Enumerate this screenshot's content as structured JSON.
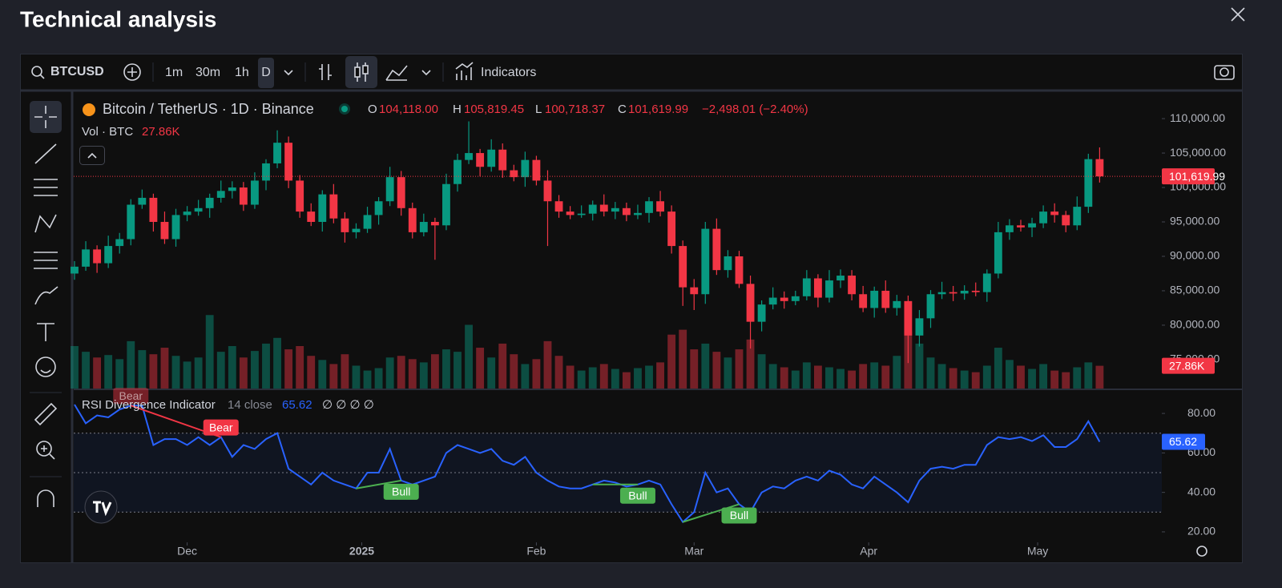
{
  "page": {
    "title": "Technical analysis",
    "toolbar": {
      "symbol": "BTCUSD",
      "intervals": [
        "1m",
        "30m",
        "1h",
        "D"
      ],
      "indicators": "Indicators"
    }
  },
  "chart_data": {
    "type": "candlestick",
    "header": {
      "instrument": "Bitcoin / TetherUS · 1D · Binance",
      "o": "O",
      "h": "H",
      "l": "L",
      "c": "C",
      "volume_title": "Vol · BTC"
    },
    "last_labels": {
      "open": "104,118.00",
      "high": "105,819.45",
      "low": "100,718.37",
      "close": "101,619.99",
      "change": "−2,498.01 (−2.40%)",
      "volume": "27.86K"
    },
    "up_color": "#089981",
    "down_color": "#f23645",
    "xlim": [
      -0.07,
      96.52
    ],
    "xticks": [
      {
        "value": 10,
        "label": "Dec"
      },
      {
        "value": 25.5,
        "label": "2025"
      },
      {
        "value": 41,
        "label": "Feb"
      },
      {
        "value": 55,
        "label": "Mar"
      },
      {
        "value": 70.5,
        "label": "Apr"
      },
      {
        "value": 85.5,
        "label": "May"
      }
    ],
    "ylim": [
      70800,
      113500
    ],
    "yticks": [
      {
        "value": 75000,
        "label": "75,000.00"
      },
      {
        "value": 80000,
        "label": "80,000.00"
      },
      {
        "value": 85000,
        "label": "85,000.00"
      },
      {
        "value": 90000,
        "label": "90,000.00"
      },
      {
        "value": 95000,
        "label": "95,000.00"
      },
      {
        "value": 100000,
        "label": "100,000.00"
      },
      {
        "value": 105000,
        "label": "105,000.00"
      },
      {
        "value": 110000,
        "label": "110,000.00"
      }
    ],
    "grid": false,
    "open": [
      87500,
      88500,
      91000,
      89000,
      91500,
      92500,
      97500,
      98500,
      95000,
      92500,
      96000,
      96500,
      97000,
      98500,
      99500,
      100000,
      97500,
      101000,
      103500,
      106500,
      101000,
      96500,
      95000,
      99000,
      95500,
      93500,
      94000,
      96000,
      98000,
      101500,
      97000,
      93500,
      95000,
      94500,
      100500,
      104000,
      105000,
      103000,
      105500,
      102500,
      101500,
      104000,
      101000,
      98000,
      96500,
      96000,
      96200,
      97500,
      96500,
      97000,
      96000,
      96300,
      98000,
      96500,
      91500,
      85500,
      84500,
      94000,
      88000,
      90000,
      86000,
      80500,
      83000,
      84000,
      83500,
      84200,
      86800,
      84000,
      86500,
      87200,
      84500,
      82500,
      85000,
      82500,
      83500,
      78500,
      81000,
      84500,
      84800,
      84600,
      85000,
      84800,
      87500,
      93500,
      94500,
      94200,
      94800,
      96500,
      96000,
      94500,
      97200,
      104118
    ],
    "high": [
      89300,
      92200,
      91600,
      93000,
      93400,
      98300,
      99700,
      99100,
      96500,
      96900,
      97300,
      98200,
      99100,
      101000,
      100900,
      100800,
      102200,
      104100,
      108300,
      107400,
      101800,
      97700,
      99600,
      100500,
      96400,
      94800,
      97200,
      98600,
      103000,
      102400,
      97800,
      96200,
      95600,
      102000,
      104900,
      109600,
      105600,
      107000,
      106400,
      103300,
      105200,
      104600,
      102500,
      98900,
      97300,
      97400,
      98100,
      99000,
      97900,
      97800,
      97500,
      98600,
      99500,
      97400,
      92300,
      86700,
      95000,
      95500,
      90900,
      90800,
      87200,
      83600,
      85500,
      84900,
      85000,
      88000,
      87400,
      88000,
      88100,
      88000,
      85700,
      85600,
      86500,
      84400,
      84300,
      82200,
      85100,
      86300,
      85700,
      85800,
      86200,
      88100,
      95000,
      95400,
      95300,
      95600,
      97400,
      97700,
      96600,
      98700,
      104900,
      105819.45
    ],
    "low": [
      86600,
      87900,
      87600,
      88300,
      90400,
      91600,
      96900,
      93600,
      91800,
      91400,
      95100,
      95900,
      95600,
      97800,
      98400,
      96600,
      96900,
      99600,
      102800,
      99900,
      95600,
      94400,
      93600,
      94800,
      92000,
      92600,
      93400,
      94600,
      97300,
      95900,
      92600,
      92900,
      89500,
      93800,
      99400,
      103400,
      101600,
      102300,
      101400,
      100900,
      100100,
      100300,
      91500,
      95600,
      95400,
      95600,
      95200,
      95800,
      95400,
      95100,
      95400,
      94900,
      95800,
      90400,
      82800,
      82200,
      83100,
      87300,
      86900,
      85400,
      76600,
      79100,
      82300,
      82400,
      82900,
      83600,
      82600,
      83300,
      85400,
      83600,
      81900,
      81100,
      81800,
      81400,
      74500,
      76900,
      79600,
      83800,
      83500,
      83700,
      84200,
      83400,
      86800,
      92400,
      93600,
      92800,
      94100,
      94900,
      93500,
      93800,
      96300,
      100718.37
    ],
    "close": [
      88500,
      91000,
      89000,
      91500,
      92500,
      97500,
      98500,
      95000,
      92500,
      96000,
      96500,
      97000,
      98500,
      99500,
      100000,
      97500,
      101000,
      103500,
      106500,
      101000,
      96500,
      95000,
      99000,
      95500,
      93500,
      94000,
      96000,
      98000,
      101500,
      97000,
      93500,
      95000,
      94500,
      100500,
      104000,
      105000,
      103000,
      105500,
      102500,
      101500,
      104000,
      101000,
      98000,
      96500,
      96000,
      96200,
      97500,
      96500,
      97000,
      96000,
      96300,
      98000,
      96500,
      91500,
      85500,
      84500,
      94000,
      88000,
      90000,
      86000,
      80500,
      83000,
      84000,
      83500,
      84200,
      86800,
      84000,
      86500,
      87200,
      84500,
      82500,
      85000,
      82500,
      83500,
      78500,
      81000,
      84500,
      84800,
      84600,
      85000,
      84800,
      87500,
      93500,
      94500,
      94200,
      94800,
      96500,
      96000,
      94500,
      97200,
      104118,
      101619.99
    ],
    "volume_ylim": [
      0,
      360000
    ],
    "volume": [
      52000,
      45000,
      38000,
      41000,
      36000,
      58000,
      47000,
      42000,
      50000,
      40000,
      33000,
      38000,
      90000,
      45000,
      52000,
      38000,
      46000,
      55000,
      62000,
      48000,
      52000,
      40000,
      35000,
      30000,
      42000,
      28000,
      22000,
      25000,
      38000,
      40000,
      36000,
      32000,
      42000,
      48000,
      45000,
      78000,
      50000,
      38000,
      55000,
      42000,
      30000,
      36000,
      58000,
      40000,
      28000,
      22000,
      26000,
      30000,
      24000,
      20000,
      25000,
      28000,
      32000,
      66000,
      72000,
      48000,
      55000,
      45000,
      38000,
      48000,
      60000,
      42000,
      30000,
      26000,
      22000,
      32000,
      28000,
      26000,
      24000,
      22000,
      30000,
      32000,
      28000,
      40000,
      70000,
      55000,
      38000,
      30000,
      25000,
      22000,
      20000,
      28000,
      50000,
      35000,
      28000,
      24000,
      30000,
      22000,
      20000,
      26000,
      32000,
      27860
    ],
    "rsi_title": "RSI Divergence Indicator",
    "rsi_params": "14 close",
    "rsi_flags": "∅ ∅ ∅ ∅",
    "rsi_color": "#2962ff",
    "rsi_ylim": [
      14.7,
      91.8
    ],
    "rsi_yticks": [
      {
        "value": 20,
        "label": "20.00"
      },
      {
        "value": 40,
        "label": "40.00"
      },
      {
        "value": 60,
        "label": "60.00"
      },
      {
        "value": 80,
        "label": "80.00"
      }
    ],
    "rsi_levels": [
      30,
      50,
      70
    ],
    "rsi": [
      84.5,
      75,
      79,
      78,
      82,
      84,
      84,
      64,
      67,
      67,
      64,
      68,
      64,
      68,
      58,
      64,
      62,
      67,
      70,
      52,
      48,
      44,
      50,
      46,
      44,
      42,
      50,
      50,
      62,
      46,
      44,
      46,
      48,
      60,
      64,
      62,
      60,
      62,
      56,
      54,
      58,
      50,
      46,
      43,
      42,
      42,
      44,
      46,
      45,
      43,
      44,
      46,
      44,
      34,
      25,
      30,
      50,
      40,
      42,
      34,
      30,
      40,
      43,
      42,
      46,
      48,
      46,
      51,
      49,
      44,
      42,
      48,
      44,
      40,
      35,
      46,
      52,
      53,
      52,
      54,
      54,
      64,
      68,
      67,
      68,
      66,
      69,
      63,
      63,
      67,
      76,
      65.62
    ],
    "divergences": [
      {
        "label": "Bear",
        "start_label": "Bear",
        "color": "#f23645",
        "start": 5,
        "end": 13
      },
      {
        "label": "Bull",
        "color": "#4caf50",
        "start": 25,
        "end": 29
      },
      {
        "label": "Bull",
        "color": "#4caf50",
        "start": 46,
        "end": 50
      },
      {
        "label": "Bull",
        "color": "#4caf50",
        "start": 54,
        "end": 59
      }
    ]
  }
}
